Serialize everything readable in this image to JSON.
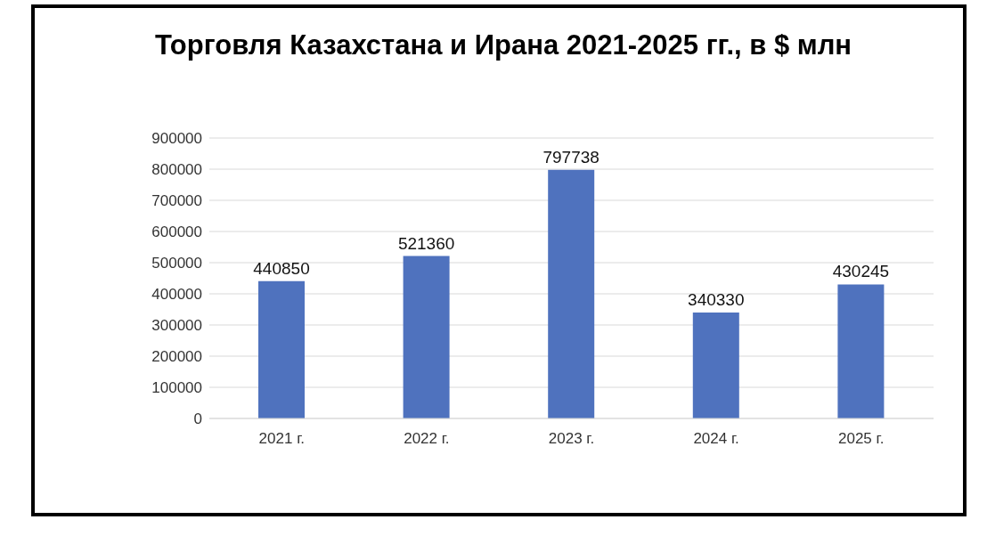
{
  "chart_data": {
    "type": "bar",
    "title": "Торговля Казахстана и Ирана 2021-2025 гг., в $ млн",
    "categories": [
      "2021 г.",
      "2022 г.",
      "2023 г.",
      "2024 г.",
      "2025 г."
    ],
    "values": [
      440850,
      521360,
      797738,
      340330,
      430245
    ],
    "color": "#4f72be",
    "ylim": [
      0,
      900000
    ],
    "yticks": [
      0,
      100000,
      200000,
      300000,
      400000,
      500000,
      600000,
      700000,
      800000,
      900000
    ],
    "grid": "y",
    "data_labels": true
  }
}
